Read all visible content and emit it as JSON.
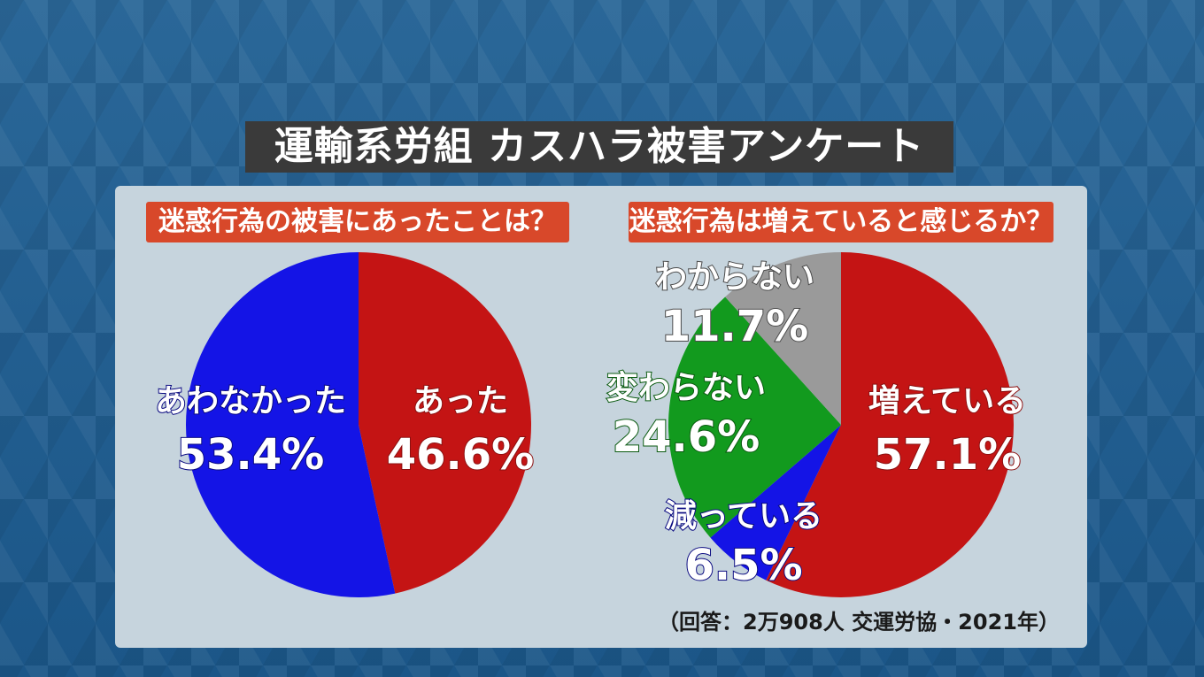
{
  "title": "運輸系労組 カスハラ被害アンケート",
  "source": "（回答：2万908人 交運労協・2021年）",
  "chart_data": [
    {
      "type": "pie",
      "title": "迷惑行為の被害にあったことは？",
      "slices": [
        {
          "label": "あった",
          "value": 46.6,
          "display": "46.6%",
          "color": "#c41414"
        },
        {
          "label": "あわなかった",
          "value": 53.4,
          "display": "53.4%",
          "color": "#1414e6"
        }
      ]
    },
    {
      "type": "pie",
      "title": "迷惑行為は増えていると感じるか？",
      "slices": [
        {
          "label": "増えている",
          "value": 57.1,
          "display": "57.1%",
          "color": "#c41414"
        },
        {
          "label": "減っている",
          "value": 6.5,
          "display": "6.5%",
          "color": "#1414e6"
        },
        {
          "label": "変わらない",
          "value": 24.6,
          "display": "24.6%",
          "color": "#129a1e"
        },
        {
          "label": "わからない",
          "value": 11.7,
          "display": "11.7%",
          "color": "#9a9a9a"
        }
      ]
    }
  ]
}
